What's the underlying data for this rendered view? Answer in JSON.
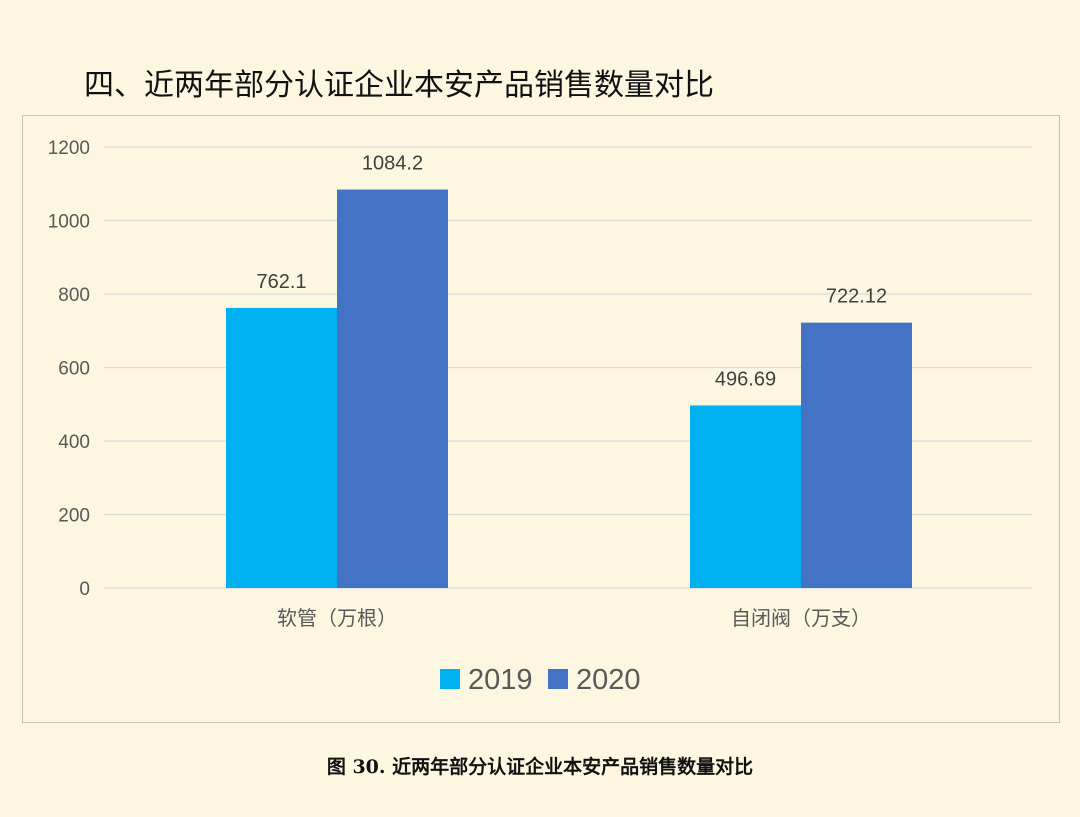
{
  "heading": "四、近两年部分认证企业本安产品销售数量对比",
  "caption": "图 30. 近两年部分认证企业本安产品销售数量对比",
  "colors": {
    "series_2019": "#00b0f0",
    "series_2020": "#4472c4",
    "background": "#fdf6e0",
    "gridline": "#d9d9d9",
    "axis_text": "#595959"
  },
  "chart_data": {
    "type": "bar",
    "categories": [
      "软管（万根）",
      "自闭阀（万支）"
    ],
    "series": [
      {
        "name": "2019",
        "values": [
          762.1,
          496.69
        ],
        "labels": [
          "762.1",
          "496.69"
        ]
      },
      {
        "name": "2020",
        "values": [
          1084.2,
          722.12
        ],
        "labels": [
          "1084.2",
          "722.12"
        ]
      }
    ],
    "ylim": [
      0,
      1200
    ],
    "yticks": [
      0,
      200,
      400,
      600,
      800,
      1000,
      1200
    ],
    "grid": true,
    "legend_position": "bottom",
    "title": "",
    "xlabel": "",
    "ylabel": ""
  }
}
